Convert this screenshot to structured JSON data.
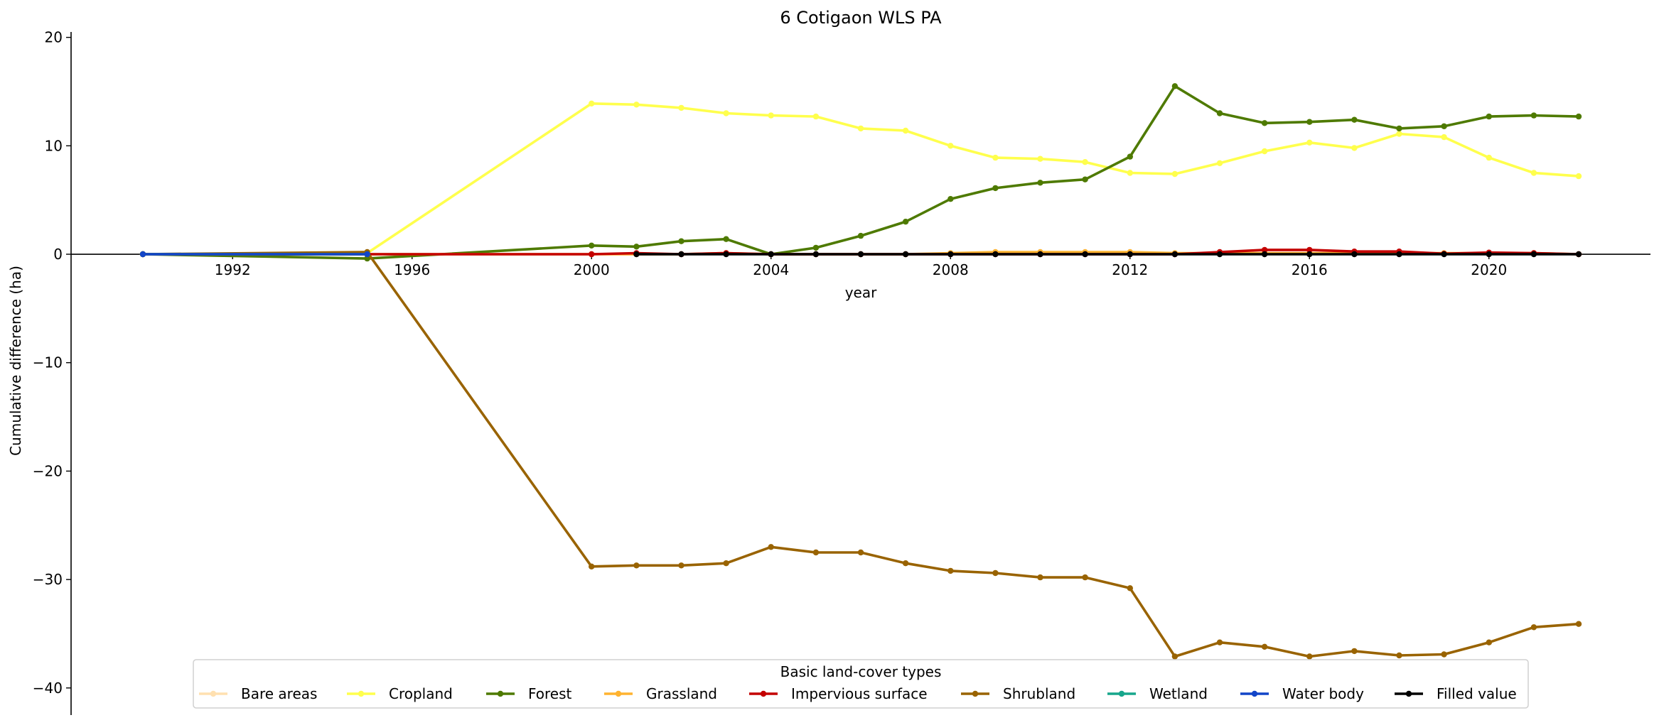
{
  "chart_data": {
    "type": "line",
    "title": "6 Cotigaon WLS PA",
    "xlabel": "year",
    "ylabel": "Cumulative difference (ha)",
    "xlim": [
      1988.4,
      2023.6
    ],
    "ylim": [
      -42.5,
      20.5
    ],
    "xticks": [
      1992,
      1996,
      2000,
      2004,
      2008,
      2012,
      2016,
      2020
    ],
    "yticks": [
      -40,
      -30,
      -20,
      -10,
      0,
      10,
      20
    ],
    "grid": false,
    "legend": {
      "title": "Basic land-cover types",
      "placement": "lower-center"
    },
    "series": [
      {
        "name": "Bare areas",
        "color": "#ffe0b0",
        "x": [
          1990,
          1995
        ],
        "y": [
          0,
          0
        ]
      },
      {
        "name": "Cropland",
        "color": "#ffff4d",
        "x": [
          1990,
          1995,
          2000,
          2001,
          2002,
          2003,
          2004,
          2005,
          2006,
          2007,
          2008,
          2009,
          2010,
          2011,
          2012,
          2013,
          2014,
          2015,
          2016,
          2017,
          2018,
          2019,
          2020,
          2021,
          2022
        ],
        "y": [
          0,
          0.1,
          13.9,
          13.8,
          13.5,
          13.0,
          12.8,
          12.7,
          11.6,
          11.4,
          10.0,
          8.9,
          8.8,
          8.5,
          7.5,
          7.4,
          8.4,
          9.5,
          10.3,
          9.8,
          11.1,
          10.8,
          8.9,
          7.5,
          7.2
        ]
      },
      {
        "name": "Forest",
        "color": "#4e7a00",
        "x": [
          1990,
          1995,
          2000,
          2001,
          2002,
          2003,
          2004,
          2005,
          2006,
          2007,
          2008,
          2009,
          2010,
          2011,
          2012,
          2013,
          2014,
          2015,
          2016,
          2017,
          2018,
          2019,
          2020,
          2021,
          2022
        ],
        "y": [
          0,
          -0.4,
          0.8,
          0.7,
          1.2,
          1.4,
          0,
          0.6,
          1.7,
          3.0,
          5.1,
          6.1,
          6.6,
          6.9,
          9.0,
          15.5,
          13.0,
          12.1,
          12.2,
          12.4,
          11.6,
          11.8,
          12.7,
          12.8,
          12.7
        ]
      },
      {
        "name": "Grassland",
        "color": "#ffb330",
        "x": [
          1990,
          1995,
          2000,
          2001,
          2002,
          2003,
          2004,
          2005,
          2006,
          2007,
          2008,
          2009,
          2010,
          2011,
          2012,
          2013,
          2014,
          2015,
          2016,
          2017,
          2018,
          2019,
          2020,
          2021,
          2022
        ],
        "y": [
          0,
          0,
          0,
          0,
          0,
          0.1,
          0,
          0,
          0,
          0,
          0.1,
          0.2,
          0.2,
          0.2,
          0.2,
          0.1,
          0.1,
          0.1,
          0.1,
          0.1,
          0.1,
          0.1,
          0.1,
          0.1,
          0
        ]
      },
      {
        "name": "Impervious surface",
        "color": "#c40000",
        "x": [
          1990,
          1995,
          2000,
          2001,
          2002,
          2003,
          2004,
          2005,
          2006,
          2007,
          2008,
          2009,
          2010,
          2011,
          2012,
          2013,
          2014,
          2015,
          2016,
          2017,
          2018,
          2019,
          2020,
          2021,
          2022
        ],
        "y": [
          0,
          0,
          0,
          0.1,
          0,
          0.1,
          0,
          0,
          0,
          0,
          0,
          0,
          0,
          0,
          0,
          0,
          0.2,
          0.4,
          0.4,
          0.25,
          0.25,
          0.05,
          0.15,
          0.1,
          0
        ]
      },
      {
        "name": "Shrubland",
        "color": "#996300",
        "x": [
          1990,
          1995,
          2000,
          2001,
          2002,
          2003,
          2004,
          2005,
          2006,
          2007,
          2008,
          2009,
          2010,
          2011,
          2012,
          2013,
          2014,
          2015,
          2016,
          2017,
          2018,
          2019,
          2020,
          2021,
          2022
        ],
        "y": [
          0,
          0.2,
          -28.8,
          -28.7,
          -28.7,
          -28.5,
          -27.0,
          -27.5,
          -27.5,
          -28.5,
          -29.2,
          -29.4,
          -29.8,
          -29.8,
          -30.8,
          -37.1,
          -35.8,
          -36.2,
          -37.1,
          -36.6,
          -37.0,
          -36.9,
          -35.8,
          -34.4,
          -34.1
        ]
      },
      {
        "name": "Wetland",
        "color": "#17a68c",
        "x": [
          1990,
          1995
        ],
        "y": [
          0,
          0
        ]
      },
      {
        "name": "Water body",
        "color": "#1245c8",
        "x": [
          1990,
          1995
        ],
        "y": [
          0,
          0
        ]
      },
      {
        "name": "Filled value",
        "color": "#000000",
        "x": [
          2001,
          2002,
          2003,
          2004,
          2005,
          2006,
          2007,
          2008,
          2009,
          2010,
          2011,
          2012,
          2013,
          2014,
          2015,
          2016,
          2017,
          2018,
          2019,
          2020,
          2021,
          2022
        ],
        "y": [
          0,
          0,
          0,
          0,
          0,
          0,
          0,
          0,
          0,
          0,
          0,
          0,
          0,
          0,
          0,
          0,
          0,
          0,
          0,
          0,
          0,
          0
        ]
      }
    ]
  }
}
